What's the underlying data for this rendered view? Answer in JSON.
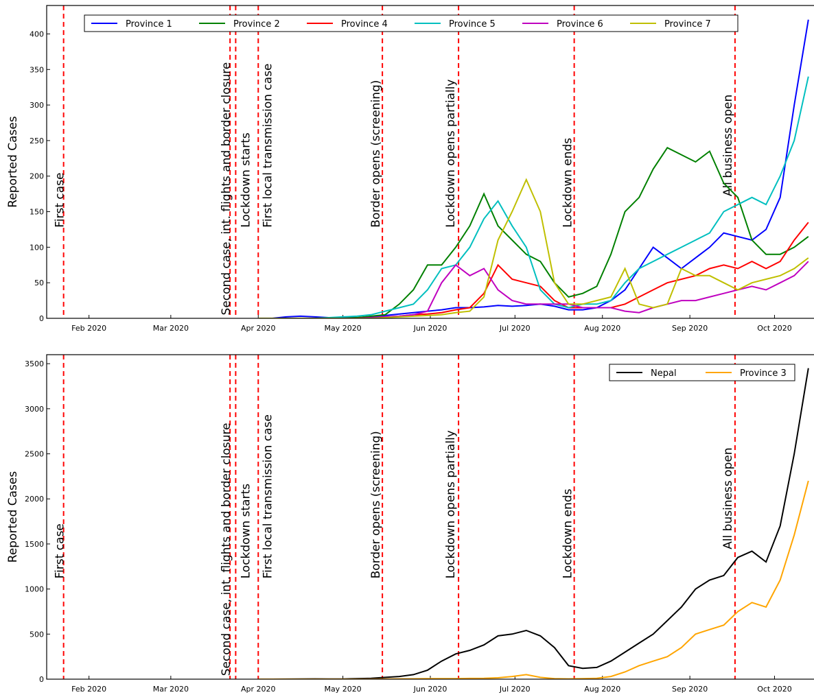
{
  "chart_data": [
    {
      "type": "line",
      "y_label": "Reported Cases",
      "x": [
        "2020-04-01",
        "2020-04-06",
        "2020-04-11",
        "2020-04-16",
        "2020-04-21",
        "2020-04-26",
        "2020-05-01",
        "2020-05-06",
        "2020-05-11",
        "2020-05-16",
        "2020-05-21",
        "2020-05-26",
        "2020-05-31",
        "2020-06-05",
        "2020-06-10",
        "2020-06-15",
        "2020-06-20",
        "2020-06-25",
        "2020-06-30",
        "2020-07-05",
        "2020-07-10",
        "2020-07-15",
        "2020-07-20",
        "2020-07-25",
        "2020-07-30",
        "2020-08-04",
        "2020-08-09",
        "2020-08-14",
        "2020-08-19",
        "2020-08-24",
        "2020-08-29",
        "2020-09-03",
        "2020-09-08",
        "2020-09-13",
        "2020-09-18",
        "2020-09-23",
        "2020-09-28",
        "2020-10-03",
        "2020-10-08",
        "2020-10-13"
      ],
      "series": [
        {
          "name": "Province 1",
          "color": "#0000ff",
          "values": [
            0,
            0,
            2,
            3,
            2,
            1,
            1,
            1,
            2,
            4,
            6,
            8,
            10,
            12,
            15,
            15,
            16,
            18,
            17,
            18,
            20,
            17,
            12,
            12,
            15,
            25,
            40,
            70,
            100,
            85,
            70,
            85,
            100,
            120,
            115,
            110,
            125,
            170,
            300,
            420
          ]
        },
        {
          "name": "Province 2",
          "color": "#008000",
          "values": [
            0,
            0,
            0,
            0,
            0,
            0,
            0,
            1,
            3,
            5,
            20,
            40,
            75,
            75,
            100,
            130,
            175,
            130,
            110,
            90,
            80,
            50,
            30,
            35,
            45,
            90,
            150,
            170,
            210,
            240,
            230,
            220,
            235,
            190,
            170,
            110,
            90,
            90,
            100,
            115
          ]
        },
        {
          "name": "Province 4",
          "color": "#ff0000",
          "values": [
            0,
            0,
            0,
            0,
            0,
            0,
            0,
            0,
            1,
            2,
            3,
            5,
            6,
            8,
            12,
            15,
            35,
            75,
            55,
            50,
            45,
            25,
            15,
            15,
            15,
            15,
            20,
            30,
            40,
            50,
            55,
            60,
            70,
            75,
            70,
            80,
            70,
            80,
            110,
            135
          ]
        },
        {
          "name": "Province 5",
          "color": "#00bfbf",
          "values": [
            0,
            0,
            0,
            0,
            0,
            1,
            2,
            3,
            5,
            10,
            15,
            20,
            40,
            70,
            75,
            100,
            140,
            165,
            130,
            100,
            40,
            20,
            15,
            20,
            20,
            25,
            50,
            70,
            80,
            90,
            100,
            110,
            120,
            150,
            160,
            170,
            160,
            200,
            250,
            340
          ]
        },
        {
          "name": "Province 6",
          "color": "#bf00bf",
          "values": [
            0,
            0,
            0,
            0,
            0,
            0,
            0,
            0,
            1,
            2,
            3,
            5,
            10,
            50,
            75,
            60,
            70,
            40,
            25,
            20,
            20,
            20,
            20,
            15,
            15,
            15,
            10,
            8,
            15,
            20,
            25,
            25,
            30,
            35,
            40,
            45,
            40,
            50,
            60,
            80
          ]
        },
        {
          "name": "Province 7",
          "color": "#bfbf00",
          "values": [
            0,
            0,
            0,
            0,
            0,
            0,
            0,
            0,
            0,
            1,
            2,
            3,
            4,
            5,
            8,
            10,
            30,
            110,
            150,
            195,
            150,
            50,
            20,
            20,
            25,
            30,
            70,
            20,
            15,
            20,
            70,
            60,
            60,
            50,
            40,
            50,
            55,
            60,
            70,
            85
          ]
        }
      ],
      "xlim": [
        "2020-01-17",
        "2020-10-15"
      ],
      "xticks": [
        {
          "value": "2020-02-01",
          "label": "Feb 2020"
        },
        {
          "value": "2020-03-01",
          "label": "Mar 2020"
        },
        {
          "value": "2020-04-01",
          "label": "Apr 2020"
        },
        {
          "value": "2020-05-01",
          "label": "May 2020"
        },
        {
          "value": "2020-06-01",
          "label": "Jun 2020"
        },
        {
          "value": "2020-07-01",
          "label": "Jul 2020"
        },
        {
          "value": "2020-08-01",
          "label": "Aug 2020"
        },
        {
          "value": "2020-09-01",
          "label": "Sep 2020"
        },
        {
          "value": "2020-10-01",
          "label": "Oct 2020"
        }
      ],
      "ylim": [
        0,
        440
      ],
      "yticks": [
        0,
        50,
        100,
        150,
        200,
        250,
        300,
        350,
        400
      ],
      "legend": "upper center",
      "annotation_color": "#ff0000",
      "annotations": [
        {
          "x": "2020-01-23",
          "text": "First case"
        },
        {
          "x": "2020-03-22",
          "text": "Second case, int. flights and border closure"
        },
        {
          "x": "2020-03-24",
          "text": "Lockdown starts"
        },
        {
          "x": "2020-04-01",
          "text": "First local transmission case"
        },
        {
          "x": "2020-05-15",
          "text": "Border opens (screening)"
        },
        {
          "x": "2020-06-11",
          "text": "Lockdown opens partially"
        },
        {
          "x": "2020-07-22",
          "text": "Lockdown ends"
        },
        {
          "x": "2020-09-17",
          "text": "All business open"
        }
      ]
    },
    {
      "type": "line",
      "y_label": "Reported Cases",
      "x": [
        "2020-04-01",
        "2020-04-06",
        "2020-04-11",
        "2020-04-16",
        "2020-04-21",
        "2020-04-26",
        "2020-05-01",
        "2020-05-06",
        "2020-05-11",
        "2020-05-16",
        "2020-05-21",
        "2020-05-26",
        "2020-05-31",
        "2020-06-05",
        "2020-06-10",
        "2020-06-15",
        "2020-06-20",
        "2020-06-25",
        "2020-06-30",
        "2020-07-05",
        "2020-07-10",
        "2020-07-15",
        "2020-07-20",
        "2020-07-25",
        "2020-07-30",
        "2020-08-04",
        "2020-08-09",
        "2020-08-14",
        "2020-08-19",
        "2020-08-24",
        "2020-08-29",
        "2020-09-03",
        "2020-09-08",
        "2020-09-13",
        "2020-09-18",
        "2020-09-23",
        "2020-09-28",
        "2020-10-03",
        "2020-10-08",
        "2020-10-13"
      ],
      "series": [
        {
          "name": "Nepal",
          "color": "#000000",
          "values": [
            0,
            0,
            1,
            2,
            3,
            2,
            2,
            5,
            10,
            20,
            30,
            50,
            100,
            200,
            280,
            320,
            380,
            480,
            500,
            540,
            480,
            350,
            150,
            120,
            130,
            200,
            300,
            400,
            500,
            650,
            800,
            1000,
            1100,
            1150,
            1350,
            1420,
            1300,
            1700,
            2500,
            3450
          ]
        },
        {
          "name": "Province 3",
          "color": "#ffa500",
          "values": [
            0,
            0,
            0,
            0,
            0,
            0,
            0,
            0,
            1,
            2,
            3,
            4,
            5,
            5,
            6,
            8,
            10,
            15,
            30,
            50,
            20,
            5,
            3,
            5,
            10,
            30,
            80,
            150,
            200,
            250,
            350,
            500,
            550,
            600,
            750,
            850,
            800,
            1100,
            1600,
            2200
          ]
        }
      ],
      "xlim": [
        "2020-01-17",
        "2020-10-15"
      ],
      "xticks": [
        {
          "value": "2020-02-01",
          "label": "Feb 2020"
        },
        {
          "value": "2020-03-01",
          "label": "Mar 2020"
        },
        {
          "value": "2020-04-01",
          "label": "Apr 2020"
        },
        {
          "value": "2020-05-01",
          "label": "May 2020"
        },
        {
          "value": "2020-06-01",
          "label": "Jun 2020"
        },
        {
          "value": "2020-07-01",
          "label": "Jul 2020"
        },
        {
          "value": "2020-08-01",
          "label": "Aug 2020"
        },
        {
          "value": "2020-09-01",
          "label": "Sep 2020"
        },
        {
          "value": "2020-10-01",
          "label": "Oct 2020"
        }
      ],
      "ylim": [
        0,
        3600
      ],
      "yticks": [
        0,
        500,
        1000,
        1500,
        2000,
        2500,
        3000,
        3500
      ],
      "legend": "upper right",
      "annotation_color": "#ff0000",
      "annotations": [
        {
          "x": "2020-01-23",
          "text": "First case"
        },
        {
          "x": "2020-03-22",
          "text": "Second case, int. flights and border closure"
        },
        {
          "x": "2020-03-24",
          "text": "Lockdown starts"
        },
        {
          "x": "2020-04-01",
          "text": "First local transmission case"
        },
        {
          "x": "2020-05-15",
          "text": "Border opens (screening)"
        },
        {
          "x": "2020-06-11",
          "text": "Lockdown opens partially"
        },
        {
          "x": "2020-07-22",
          "text": "Lockdown ends"
        },
        {
          "x": "2020-09-17",
          "text": "All business open"
        }
      ]
    }
  ]
}
